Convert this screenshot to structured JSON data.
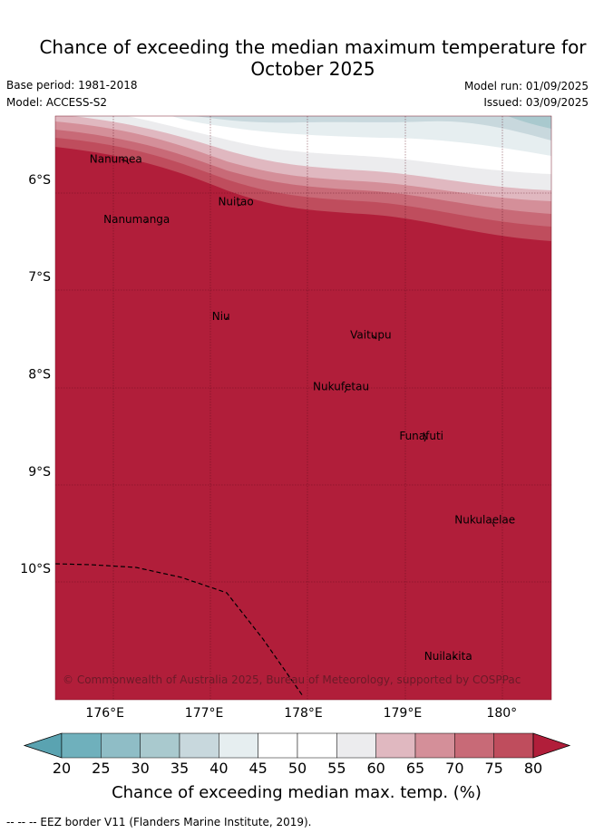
{
  "title_line1": "Chance of exceeding the median maximum temperature for",
  "title_line2": "October 2025",
  "base_period": "Base period: 1981-2018",
  "model": "Model: ACCESS-S2",
  "model_run": "Model run: 01/09/2025",
  "issued": "Issued: 03/09/2025",
  "copyright": "© Commonwealth of Australia 2025, Bureau of Meteorology, supported by COSPPac",
  "map": {
    "lon_range": [
      175.5,
      180.5
    ],
    "lat_range": [
      -5.35,
      -11.35
    ],
    "lon_ticks": [
      {
        "value": 176,
        "label": "176°E"
      },
      {
        "value": 177,
        "label": "177°E"
      },
      {
        "value": 178,
        "label": "178°E"
      },
      {
        "value": 179,
        "label": "179°E"
      },
      {
        "value": 180,
        "label": "180°"
      }
    ],
    "lat_ticks": [
      {
        "value": -6,
        "label": "6°S"
      },
      {
        "value": -7,
        "label": "7°S"
      },
      {
        "value": -8,
        "label": "8°S"
      },
      {
        "value": -9,
        "label": "9°S"
      },
      {
        "value": -10,
        "label": "10°S"
      }
    ],
    "places": [
      {
        "name": "Nanumea",
        "lon": 176.11,
        "lat": -5.67
      },
      {
        "name": "Nanumanga",
        "lon": 176.32,
        "lat": -6.29
      },
      {
        "name": "Nuitao",
        "lon": 177.32,
        "lat": -6.11
      },
      {
        "name": "Niu",
        "lon": 177.17,
        "lat": -7.29
      },
      {
        "name": "Vaitupu",
        "lon": 178.68,
        "lat": -7.48
      },
      {
        "name": "Nukufetau",
        "lon": 178.38,
        "lat": -8.01
      },
      {
        "name": "Funafuti",
        "lon": 179.19,
        "lat": -8.52
      },
      {
        "name": "Nukulaelae",
        "lon": 179.83,
        "lat": -9.38
      },
      {
        "name": "Nuilakita",
        "lon": 179.46,
        "lat": -10.78
      }
    ]
  },
  "colorbar": {
    "title": "Chance of exceeding median max. temp. (%)",
    "labels": [
      "20",
      "25",
      "30",
      "35",
      "40",
      "45",
      "50",
      "55",
      "60",
      "65",
      "70",
      "75",
      "80"
    ],
    "colors": [
      "#5aa3b1",
      "#6fb0bc",
      "#8fbdc6",
      "#a9c9ce",
      "#c8d8dd",
      "#e6eef0",
      "#ffffff",
      "#ffffff",
      "#ececee",
      "#e0b8c0",
      "#d48f99",
      "#c86a77",
      "#bf4d5d",
      "#b11e3a"
    ]
  },
  "legend_note": "--  --  -- EEZ border V11 (Flanders Marine Institute, 2019).",
  "colors": {
    "dominant": "#b11e3a",
    "frame": "#7a1a2c"
  }
}
